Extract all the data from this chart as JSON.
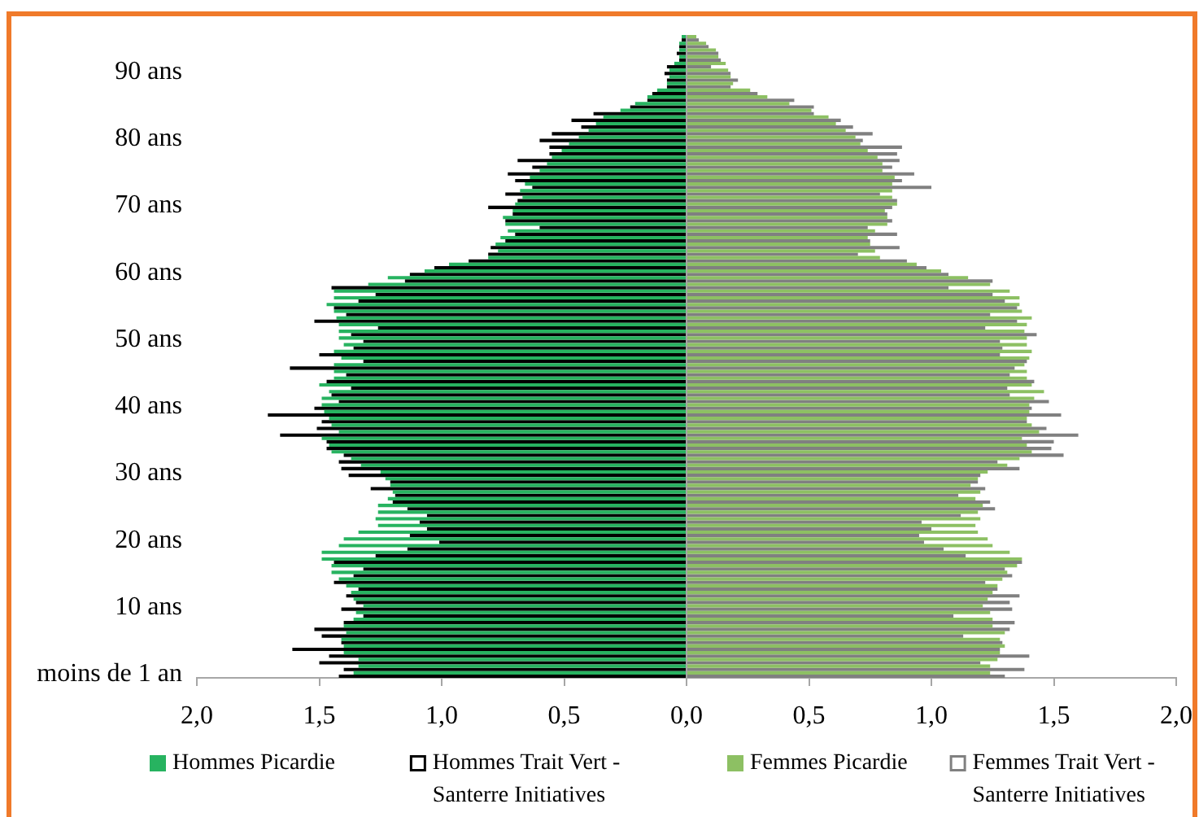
{
  "chart_data": [
    {
      "type": "bar",
      "orientation": "horizontal",
      "categories": [
        null,
        null,
        null,
        null,
        null,
        "90 ans",
        null,
        null,
        null,
        null,
        null,
        null,
        null,
        null,
        null,
        "80 ans",
        null,
        null,
        null,
        null,
        null,
        null,
        null,
        null,
        null,
        "70 ans",
        null,
        null,
        null,
        null,
        null,
        null,
        null,
        null,
        null,
        "60 ans",
        null,
        null,
        null,
        null,
        null,
        null,
        null,
        null,
        null,
        "50 ans",
        null,
        null,
        null,
        null,
        null,
        null,
        null,
        null,
        null,
        "40 ans",
        null,
        null,
        null,
        null,
        null,
        null,
        null,
        null,
        null,
        "30 ans",
        null,
        null,
        null,
        null,
        null,
        null,
        null,
        null,
        null,
        "20 ans",
        null,
        null,
        null,
        null,
        null,
        null,
        null,
        null,
        null,
        "10 ans",
        null,
        null,
        null,
        null,
        null,
        null,
        null,
        null,
        null,
        "moins de 1 an"
      ],
      "series": [
        {
          "name": "Hommes Picardie",
          "color": "#27b360",
          "values": [
            -0.02,
            -0.03,
            -0.03,
            -0.03,
            -0.05,
            -0.07,
            -0.07,
            -0.08,
            -0.12,
            -0.16,
            -0.21,
            -0.27,
            -0.34,
            -0.37,
            -0.4,
            -0.44,
            -0.48,
            -0.51,
            -0.55,
            -0.57,
            -0.6,
            -0.64,
            -0.66,
            -0.68,
            -0.67,
            -0.7,
            -0.71,
            -0.75,
            -0.74,
            -0.73,
            -0.76,
            -0.78,
            -0.77,
            -0.81,
            -0.97,
            -1.07,
            -1.22,
            -1.3,
            -1.44,
            -1.44,
            -1.47,
            -1.44,
            -1.43,
            -1.42,
            -1.42,
            -1.42,
            -1.4,
            -1.44,
            -1.41,
            -1.44,
            -1.44,
            -1.44,
            -1.5,
            -1.46,
            -1.49,
            -1.49,
            -1.48,
            -1.46,
            -1.45,
            -1.42,
            -1.49,
            -1.46,
            -1.45,
            -1.37,
            -1.33,
            -1.25,
            -1.23,
            -1.21,
            -1.2,
            -1.22,
            -1.26,
            -1.26,
            -1.27,
            -1.26,
            -1.34,
            -1.4,
            -1.42,
            -1.49,
            -1.49,
            -1.45,
            -1.45,
            -1.42,
            -1.39,
            -1.37,
            -1.36,
            -1.32,
            -1.35,
            -1.36,
            -1.4,
            -1.39,
            -1.41,
            -1.4,
            -1.4,
            -1.34,
            -1.34,
            -1.36
          ]
        },
        {
          "name": "Hommes Trait Vert - Santerre Initiatives",
          "color": "#000000",
          "values": [
            -0.02,
            -0.03,
            -0.04,
            -0.03,
            -0.08,
            -0.09,
            -0.08,
            -0.08,
            -0.14,
            -0.16,
            -0.23,
            -0.38,
            -0.47,
            -0.43,
            -0.55,
            -0.6,
            -0.56,
            -0.56,
            -0.69,
            -0.63,
            -0.73,
            -0.7,
            -0.63,
            -0.74,
            -0.69,
            -0.81,
            -0.71,
            -0.74,
            -0.6,
            -0.7,
            -0.74,
            -0.8,
            -0.81,
            -0.89,
            -1.03,
            -1.13,
            -1.15,
            -1.45,
            -1.27,
            -1.34,
            -1.44,
            -1.39,
            -1.52,
            -1.26,
            -1.37,
            -1.32,
            -1.36,
            -1.5,
            -1.32,
            -1.62,
            -1.39,
            -1.47,
            -1.37,
            -1.45,
            -1.42,
            -1.52,
            -1.71,
            -1.49,
            -1.51,
            -1.66,
            -1.47,
            -1.47,
            -1.4,
            -1.42,
            -1.41,
            -1.38,
            -1.21,
            -1.29,
            -1.19,
            -1.2,
            -1.14,
            -1.06,
            -1.09,
            -1.06,
            -1.13,
            -1.01,
            -1.14,
            -1.27,
            -1.44,
            -1.32,
            -1.36,
            -1.44,
            -1.34,
            -1.39,
            -1.35,
            -1.41,
            -1.32,
            -1.4,
            -1.52,
            -1.49,
            -1.41,
            -1.61,
            -1.46,
            -1.5,
            -1.4,
            -1.42
          ]
        }
      ],
      "xlim": [
        -2,
        0
      ],
      "xticks": [
        {
          "value": -2,
          "label": "2,0"
        },
        {
          "value": -1.5,
          "label": "1,5"
        },
        {
          "value": -1,
          "label": "1,0"
        },
        {
          "value": -0.5,
          "label": "0,5"
        },
        {
          "value": 0,
          "label": "0,0"
        }
      ],
      "legend": "bottom"
    },
    {
      "type": "bar",
      "orientation": "horizontal",
      "tick_labels": "x",
      "categories": [
        null,
        null,
        null,
        null,
        null,
        null,
        null,
        null,
        null,
        null,
        null,
        null,
        null,
        null,
        null,
        null,
        null,
        null,
        null,
        null,
        null,
        null,
        null,
        null,
        null,
        null,
        null,
        null,
        null,
        null,
        null,
        null,
        null,
        null,
        null,
        null,
        null,
        null,
        null,
        null,
        null,
        null,
        null,
        null,
        null,
        null,
        null,
        null,
        null,
        null,
        null,
        null,
        null,
        null,
        null,
        null,
        null,
        null,
        null,
        null,
        null,
        null,
        null,
        null,
        null,
        null,
        null,
        null,
        null,
        null,
        null,
        null,
        null,
        null,
        null,
        null,
        null,
        null,
        null,
        null,
        null,
        null,
        null,
        null,
        null,
        null,
        null,
        null,
        null,
        null,
        null,
        null,
        null,
        null,
        null,
        null
      ],
      "series": [
        {
          "name": "Femmes Picardie",
          "color": "#8dc063",
          "values": [
            0.04,
            0.08,
            0.12,
            0.13,
            0.16,
            0.17,
            0.18,
            0.19,
            0.26,
            0.33,
            0.42,
            0.51,
            0.58,
            0.61,
            0.65,
            0.69,
            0.71,
            0.74,
            0.78,
            0.8,
            0.8,
            0.85,
            0.84,
            0.84,
            0.84,
            0.86,
            0.81,
            0.82,
            0.82,
            0.77,
            0.74,
            0.75,
            0.77,
            0.79,
            0.94,
            1.04,
            1.15,
            1.24,
            1.32,
            1.36,
            1.36,
            1.37,
            1.41,
            1.39,
            1.38,
            1.39,
            1.39,
            1.41,
            1.4,
            1.38,
            1.39,
            1.39,
            1.41,
            1.46,
            1.42,
            1.4,
            1.4,
            1.39,
            1.41,
            1.44,
            1.37,
            1.39,
            1.41,
            1.36,
            1.31,
            1.23,
            1.19,
            1.16,
            1.2,
            1.18,
            1.21,
            1.19,
            1.2,
            1.18,
            1.19,
            1.23,
            1.25,
            1.32,
            1.37,
            1.35,
            1.31,
            1.29,
            1.27,
            1.25,
            1.23,
            1.21,
            1.24,
            1.25,
            1.25,
            1.3,
            1.28,
            1.3,
            1.28,
            1.27,
            1.24,
            1.24
          ]
        },
        {
          "name": "Femmes Trait Vert - Santerre Initiatives",
          "color": "#808080",
          "values": [
            0.05,
            0.09,
            0.13,
            0.14,
            0.1,
            0.18,
            0.21,
            0.18,
            0.29,
            0.44,
            0.52,
            0.52,
            0.63,
            0.68,
            0.76,
            0.72,
            0.88,
            0.86,
            0.87,
            0.84,
            0.93,
            0.88,
            1.0,
            0.79,
            0.86,
            0.84,
            0.82,
            0.84,
            0.74,
            0.86,
            0.75,
            0.87,
            0.7,
            0.9,
            0.98,
            1.07,
            1.25,
            1.07,
            1.25,
            1.3,
            1.35,
            1.24,
            1.35,
            1.22,
            1.43,
            1.28,
            1.29,
            1.28,
            1.39,
            1.34,
            1.32,
            1.42,
            1.31,
            1.32,
            1.48,
            1.41,
            1.53,
            1.39,
            1.47,
            1.6,
            1.5,
            1.49,
            1.54,
            1.27,
            1.36,
            1.2,
            1.19,
            1.22,
            1.11,
            1.24,
            1.26,
            1.12,
            0.96,
            1.0,
            0.95,
            0.97,
            1.05,
            1.14,
            1.37,
            1.3,
            1.33,
            1.22,
            1.27,
            1.36,
            1.32,
            1.33,
            1.09,
            1.34,
            1.32,
            1.13,
            1.29,
            1.28,
            1.4,
            1.2,
            1.38,
            1.3
          ]
        }
      ],
      "xlim": [
        0,
        2
      ],
      "xticks": [
        {
          "value": 0,
          "label": null
        },
        {
          "value": 0.5,
          "label": "0,5"
        },
        {
          "value": 1,
          "label": "1,0"
        },
        {
          "value": 1.5,
          "label": "1,5"
        },
        {
          "value": 2,
          "label": "2,0"
        }
      ],
      "legend": "bottom"
    }
  ]
}
